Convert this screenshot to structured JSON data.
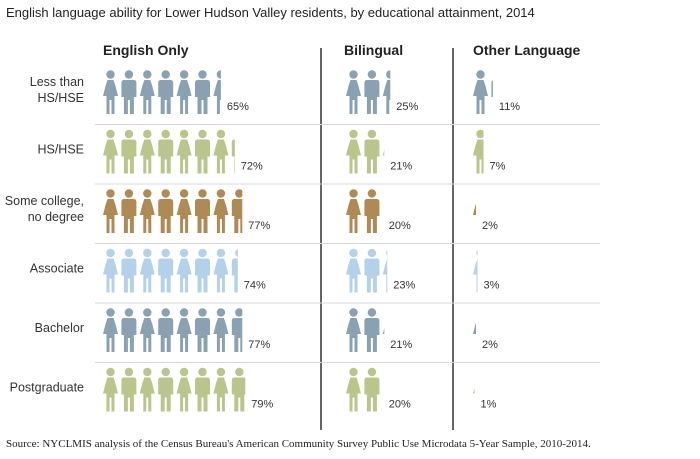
{
  "title": "English language ability for Lower Hudson Valley residents, by educational attainment, 2014",
  "source": "Source: NYCLMIS analysis  of the Census Bureau's American Community Survey Public Use Microdata 5-Year Sample, 2010-2014.",
  "chart_data": {
    "type": "bar",
    "title": "English language ability for Lower Hudson Valley residents, by educational attainment, 2014",
    "unit": "%",
    "columns": [
      "English Only",
      "Bilingual",
      "Other Language"
    ],
    "categories": [
      {
        "label_lines": [
          "Less than",
          "HS/HSE"
        ],
        "color": "#8aa1b2",
        "values": [
          65,
          25,
          11
        ],
        "labels": [
          "65%",
          "25%",
          "11%"
        ]
      },
      {
        "label_lines": [
          "HS/HSE"
        ],
        "color": "#b9c58b",
        "values": [
          72,
          21,
          7
        ],
        "labels": [
          "72%",
          "21%",
          "7%"
        ]
      },
      {
        "label_lines": [
          "Some college,",
          "no degree"
        ],
        "color": "#b08a55",
        "values": [
          77,
          20,
          2
        ],
        "labels": [
          "77%",
          "20%",
          "2%"
        ]
      },
      {
        "label_lines": [
          "Associate"
        ],
        "color": "#b3d2ea",
        "values": [
          74,
          23,
          3
        ],
        "labels": [
          "74%",
          "23%",
          "3%"
        ]
      },
      {
        "label_lines": [
          "Bachelor"
        ],
        "color": "#8aa1b2",
        "values": [
          77,
          21,
          2
        ],
        "labels": [
          "77%",
          "21%",
          "2%"
        ]
      },
      {
        "label_lines": [
          "Postgraduate"
        ],
        "color": "#b9c58b",
        "values": [
          79,
          20,
          1
        ],
        "labels": [
          "79%",
          "20%",
          "1%"
        ]
      }
    ],
    "scale": "1 figure = 10%"
  }
}
